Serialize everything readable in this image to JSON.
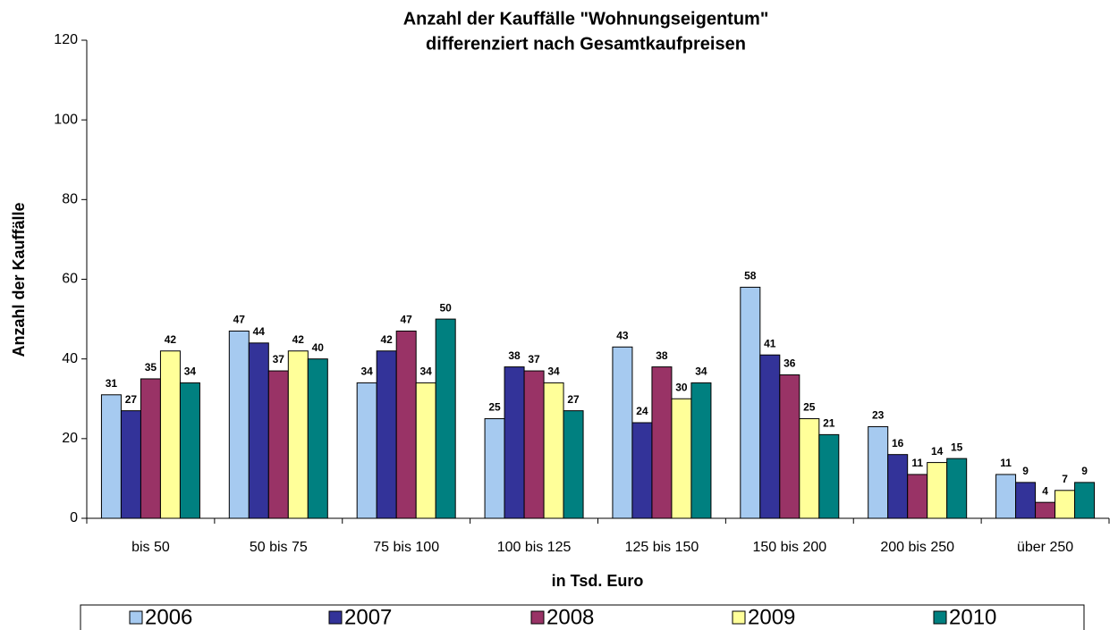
{
  "chart_data": {
    "type": "bar",
    "title": "Anzahl der Kauffälle \"Wohnungseigentum\"",
    "subtitle": "differenziert nach Gesamtkaufpreisen",
    "x_label": "in Tsd. Euro",
    "y_label": "Anzahl der Kauffälle",
    "categories": [
      "bis 50",
      "50 bis 75",
      "75 bis 100",
      "100 bis 125",
      "125 bis 150",
      "150 bis 200",
      "200 bis 250",
      "über 250"
    ],
    "series": [
      {
        "name": "2006",
        "color": "#a6caf0",
        "values": [
          31,
          47,
          34,
          25,
          43,
          58,
          23,
          11
        ]
      },
      {
        "name": "2007",
        "color": "#333399",
        "values": [
          27,
          44,
          42,
          38,
          24,
          41,
          16,
          9
        ]
      },
      {
        "name": "2008",
        "color": "#993366",
        "values": [
          35,
          37,
          47,
          37,
          38,
          36,
          11,
          4
        ]
      },
      {
        "name": "2009",
        "color": "#ffff99",
        "values": [
          42,
          42,
          34,
          34,
          30,
          25,
          14,
          7
        ]
      },
      {
        "name": "2010",
        "color": "#008080",
        "values": [
          34,
          40,
          50,
          27,
          34,
          21,
          15,
          9
        ]
      }
    ],
    "ylim": [
      0,
      120
    ],
    "yticks": [
      0,
      20,
      40,
      60,
      80,
      100,
      120
    ],
    "grid": false,
    "legend": "bottom"
  }
}
